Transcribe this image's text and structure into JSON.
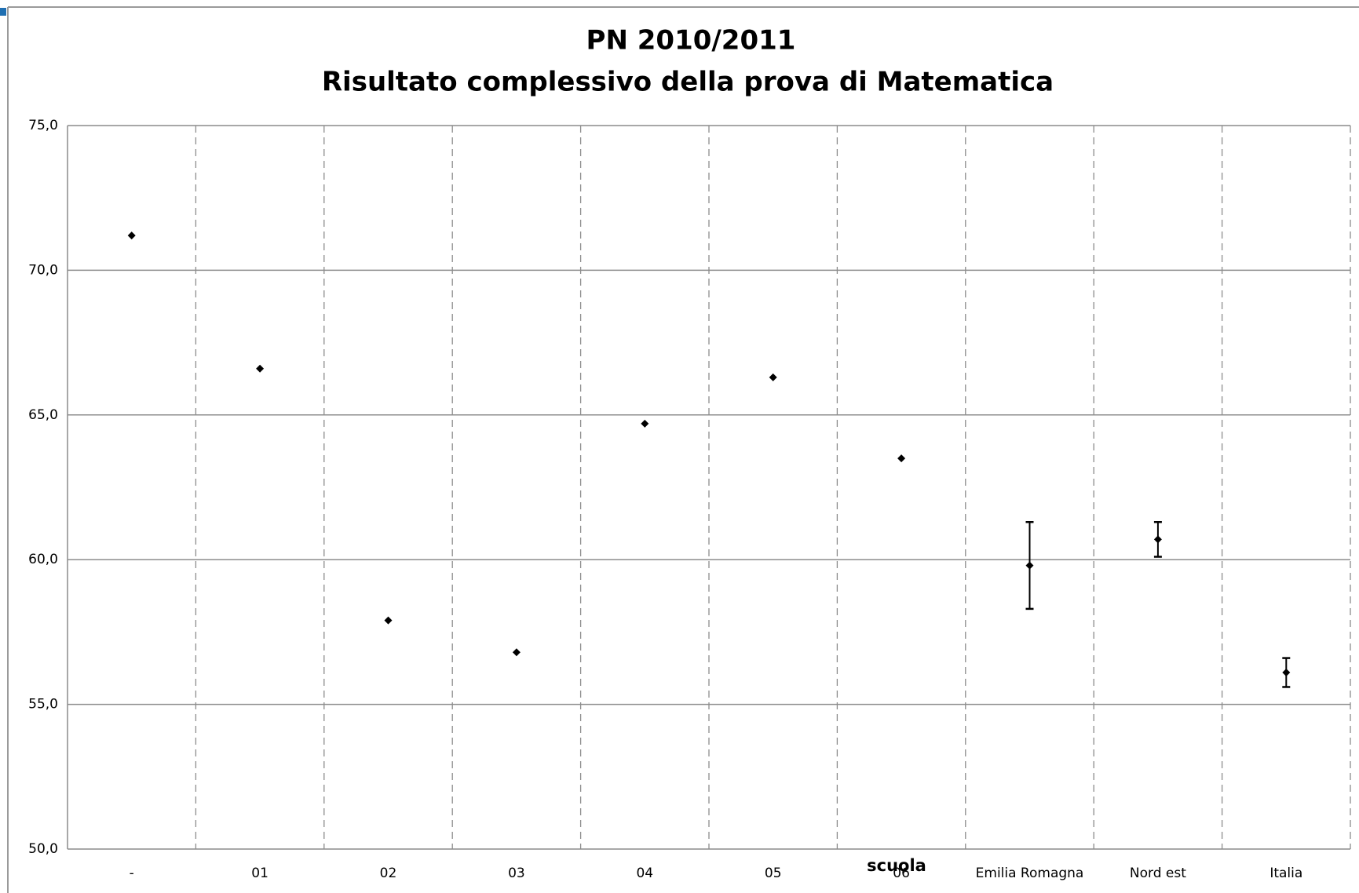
{
  "chart_data": {
    "type": "errorbar",
    "title": "PN 2010/2011",
    "subtitle": "Risultato complessivo della prova di Matematica",
    "x_label": "scuola",
    "categories": [
      "-",
      "01",
      "02",
      "03",
      "04",
      "05",
      "06",
      "Emilia Romagna",
      "Nord est",
      "Italia"
    ],
    "values": [
      71.2,
      66.6,
      57.9,
      56.8,
      64.7,
      66.3,
      63.5,
      59.8,
      60.7,
      56.1
    ],
    "errors": [
      null,
      null,
      null,
      null,
      null,
      null,
      null,
      1.5,
      0.6,
      0.5
    ],
    "color": "#000000",
    "ylim": [
      50,
      75
    ],
    "yticks": [
      {
        "value": 50,
        "label": "50,0"
      },
      {
        "value": 55,
        "label": "55,0"
      },
      {
        "value": 60,
        "label": "60,0"
      },
      {
        "value": 65,
        "label": "65,0"
      },
      {
        "value": 70,
        "label": "70,0"
      },
      {
        "value": 75,
        "label": "75,0"
      }
    ],
    "grid": true
  }
}
